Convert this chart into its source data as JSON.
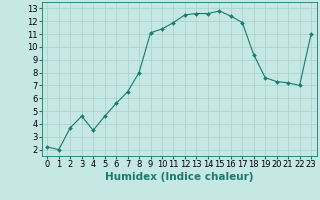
{
  "x": [
    0,
    1,
    2,
    3,
    4,
    5,
    6,
    7,
    8,
    9,
    10,
    11,
    12,
    13,
    14,
    15,
    16,
    17,
    18,
    19,
    20,
    21,
    22,
    23
  ],
  "y": [
    2.2,
    2.0,
    3.7,
    4.6,
    3.5,
    4.6,
    5.6,
    6.5,
    8.0,
    11.1,
    11.4,
    11.9,
    12.5,
    12.6,
    12.6,
    12.8,
    12.4,
    11.9,
    9.4,
    7.6,
    7.3,
    7.2,
    7.0,
    11.0
  ],
  "line_color": "#1a7a6e",
  "marker": "D",
  "marker_size": 2.0,
  "bg_color": "#c5e8e5",
  "grid_color": "#a8d0cc",
  "xlabel": "Humidex (Indice chaleur)",
  "xlim": [
    -0.5,
    23.5
  ],
  "ylim": [
    1.5,
    13.5
  ],
  "xticks": [
    0,
    1,
    2,
    3,
    4,
    5,
    6,
    7,
    8,
    9,
    10,
    11,
    12,
    13,
    14,
    15,
    16,
    17,
    18,
    19,
    20,
    21,
    22,
    23
  ],
  "yticks": [
    2,
    3,
    4,
    5,
    6,
    7,
    8,
    9,
    10,
    11,
    12,
    13
  ],
  "xtick_labels": [
    "0",
    "1",
    "2",
    "3",
    "4",
    "5",
    "6",
    "7",
    "8",
    "9",
    "10",
    "11",
    "12",
    "13",
    "14",
    "15",
    "16",
    "17",
    "18",
    "19",
    "20",
    "21",
    "22",
    "23"
  ],
  "ytick_labels": [
    "2",
    "3",
    "4",
    "5",
    "6",
    "7",
    "8",
    "9",
    "10",
    "11",
    "12",
    "13"
  ],
  "tick_fontsize": 6.0,
  "xlabel_fontsize": 7.5
}
